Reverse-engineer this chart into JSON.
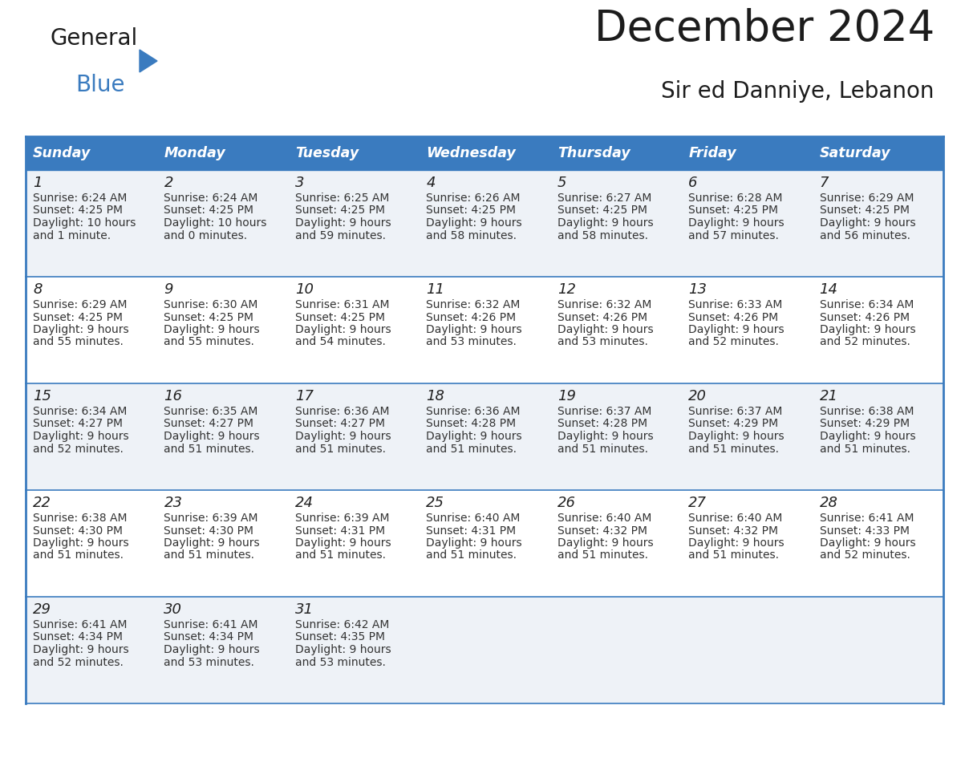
{
  "title": "December 2024",
  "subtitle": "Sir ed Danniye, Lebanon",
  "header_color": "#3a7bbf",
  "header_text_color": "#ffffff",
  "row_bg_odd": "#eef2f7",
  "row_bg_even": "#ffffff",
  "border_color": "#3a7bbf",
  "text_color": "#333333",
  "day_num_color": "#222222",
  "day_headers": [
    "Sunday",
    "Monday",
    "Tuesday",
    "Wednesday",
    "Thursday",
    "Friday",
    "Saturday"
  ],
  "weeks": [
    [
      {
        "day": 1,
        "sunrise": "6:24 AM",
        "sunset": "4:25 PM",
        "daylight": "10 hours",
        "daylight2": "and 1 minute."
      },
      {
        "day": 2,
        "sunrise": "6:24 AM",
        "sunset": "4:25 PM",
        "daylight": "10 hours",
        "daylight2": "and 0 minutes."
      },
      {
        "day": 3,
        "sunrise": "6:25 AM",
        "sunset": "4:25 PM",
        "daylight": "9 hours",
        "daylight2": "and 59 minutes."
      },
      {
        "day": 4,
        "sunrise": "6:26 AM",
        "sunset": "4:25 PM",
        "daylight": "9 hours",
        "daylight2": "and 58 minutes."
      },
      {
        "day": 5,
        "sunrise": "6:27 AM",
        "sunset": "4:25 PM",
        "daylight": "9 hours",
        "daylight2": "and 58 minutes."
      },
      {
        "day": 6,
        "sunrise": "6:28 AM",
        "sunset": "4:25 PM",
        "daylight": "9 hours",
        "daylight2": "and 57 minutes."
      },
      {
        "day": 7,
        "sunrise": "6:29 AM",
        "sunset": "4:25 PM",
        "daylight": "9 hours",
        "daylight2": "and 56 minutes."
      }
    ],
    [
      {
        "day": 8,
        "sunrise": "6:29 AM",
        "sunset": "4:25 PM",
        "daylight": "9 hours",
        "daylight2": "and 55 minutes."
      },
      {
        "day": 9,
        "sunrise": "6:30 AM",
        "sunset": "4:25 PM",
        "daylight": "9 hours",
        "daylight2": "and 55 minutes."
      },
      {
        "day": 10,
        "sunrise": "6:31 AM",
        "sunset": "4:25 PM",
        "daylight": "9 hours",
        "daylight2": "and 54 minutes."
      },
      {
        "day": 11,
        "sunrise": "6:32 AM",
        "sunset": "4:26 PM",
        "daylight": "9 hours",
        "daylight2": "and 53 minutes."
      },
      {
        "day": 12,
        "sunrise": "6:32 AM",
        "sunset": "4:26 PM",
        "daylight": "9 hours",
        "daylight2": "and 53 minutes."
      },
      {
        "day": 13,
        "sunrise": "6:33 AM",
        "sunset": "4:26 PM",
        "daylight": "9 hours",
        "daylight2": "and 52 minutes."
      },
      {
        "day": 14,
        "sunrise": "6:34 AM",
        "sunset": "4:26 PM",
        "daylight": "9 hours",
        "daylight2": "and 52 minutes."
      }
    ],
    [
      {
        "day": 15,
        "sunrise": "6:34 AM",
        "sunset": "4:27 PM",
        "daylight": "9 hours",
        "daylight2": "and 52 minutes."
      },
      {
        "day": 16,
        "sunrise": "6:35 AM",
        "sunset": "4:27 PM",
        "daylight": "9 hours",
        "daylight2": "and 51 minutes."
      },
      {
        "day": 17,
        "sunrise": "6:36 AM",
        "sunset": "4:27 PM",
        "daylight": "9 hours",
        "daylight2": "and 51 minutes."
      },
      {
        "day": 18,
        "sunrise": "6:36 AM",
        "sunset": "4:28 PM",
        "daylight": "9 hours",
        "daylight2": "and 51 minutes."
      },
      {
        "day": 19,
        "sunrise": "6:37 AM",
        "sunset": "4:28 PM",
        "daylight": "9 hours",
        "daylight2": "and 51 minutes."
      },
      {
        "day": 20,
        "sunrise": "6:37 AM",
        "sunset": "4:29 PM",
        "daylight": "9 hours",
        "daylight2": "and 51 minutes."
      },
      {
        "day": 21,
        "sunrise": "6:38 AM",
        "sunset": "4:29 PM",
        "daylight": "9 hours",
        "daylight2": "and 51 minutes."
      }
    ],
    [
      {
        "day": 22,
        "sunrise": "6:38 AM",
        "sunset": "4:30 PM",
        "daylight": "9 hours",
        "daylight2": "and 51 minutes."
      },
      {
        "day": 23,
        "sunrise": "6:39 AM",
        "sunset": "4:30 PM",
        "daylight": "9 hours",
        "daylight2": "and 51 minutes."
      },
      {
        "day": 24,
        "sunrise": "6:39 AM",
        "sunset": "4:31 PM",
        "daylight": "9 hours",
        "daylight2": "and 51 minutes."
      },
      {
        "day": 25,
        "sunrise": "6:40 AM",
        "sunset": "4:31 PM",
        "daylight": "9 hours",
        "daylight2": "and 51 minutes."
      },
      {
        "day": 26,
        "sunrise": "6:40 AM",
        "sunset": "4:32 PM",
        "daylight": "9 hours",
        "daylight2": "and 51 minutes."
      },
      {
        "day": 27,
        "sunrise": "6:40 AM",
        "sunset": "4:32 PM",
        "daylight": "9 hours",
        "daylight2": "and 51 minutes."
      },
      {
        "day": 28,
        "sunrise": "6:41 AM",
        "sunset": "4:33 PM",
        "daylight": "9 hours",
        "daylight2": "and 52 minutes."
      }
    ],
    [
      {
        "day": 29,
        "sunrise": "6:41 AM",
        "sunset": "4:34 PM",
        "daylight": "9 hours",
        "daylight2": "and 52 minutes."
      },
      {
        "day": 30,
        "sunrise": "6:41 AM",
        "sunset": "4:34 PM",
        "daylight": "9 hours",
        "daylight2": "and 53 minutes."
      },
      {
        "day": 31,
        "sunrise": "6:42 AM",
        "sunset": "4:35 PM",
        "daylight": "9 hours",
        "daylight2": "and 53 minutes."
      },
      null,
      null,
      null,
      null
    ]
  ]
}
